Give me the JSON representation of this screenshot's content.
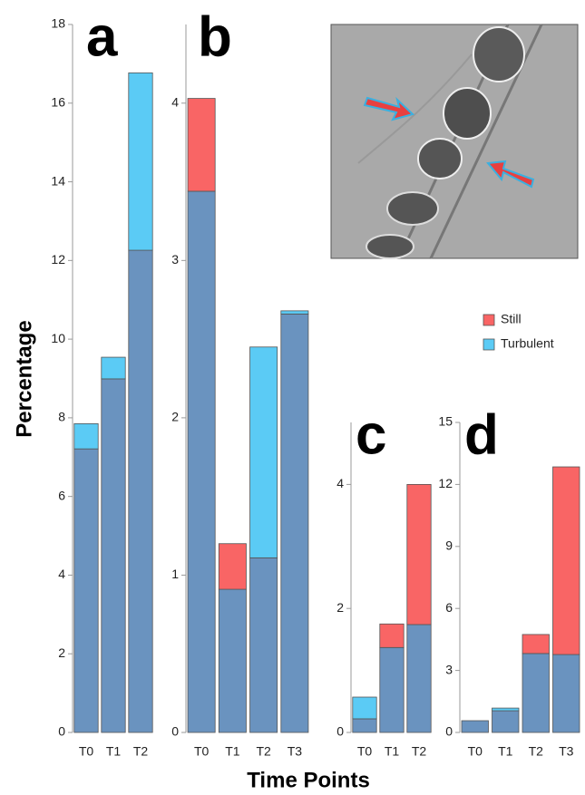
{
  "ylabel": "Percentage",
  "xlabel": "Time Points",
  "chart_data": [
    {
      "type": "stacked_bar",
      "title": "a",
      "categories": [
        "T0",
        "T1",
        "T2"
      ],
      "series": [
        {
          "color": "#6a93bf",
          "values": [
            7.21,
            8.99,
            12.26
          ]
        },
        {
          "color": "#5bcbf5",
          "values": [
            0.64,
            0.55,
            4.51
          ]
        }
      ],
      "ylim": [
        0,
        18
      ],
      "yticks": [
        0,
        2,
        4,
        6,
        8,
        10,
        12,
        14,
        16,
        18
      ]
    },
    {
      "type": "stacked_bar",
      "title": "b",
      "categories": [
        "T0",
        "T1",
        "T2",
        "T3"
      ],
      "series": [
        {
          "color": "#6a93bf",
          "values": [
            3.44,
            0.91,
            1.11,
            2.66
          ]
        },
        {
          "name": "Still",
          "color": "#f96565",
          "values": [
            0.59,
            0.29,
            0,
            0
          ]
        },
        {
          "name": "Turbulent",
          "color": "#5bcbf5",
          "values": [
            0,
            0,
            1.34,
            0.02
          ]
        }
      ],
      "ylim": [
        0,
        4.5
      ],
      "yticks": [
        0,
        1,
        2,
        3,
        4
      ],
      "legend": "right"
    },
    {
      "type": "stacked_bar",
      "title": "c",
      "categories": [
        "T0",
        "T1",
        "T2"
      ],
      "series": [
        {
          "color": "#6a93bf",
          "values": [
            0.22,
            1.37,
            1.74
          ]
        },
        {
          "color": "#f96565",
          "values": [
            0,
            0.38,
            2.26
          ]
        },
        {
          "color": "#5bcbf5",
          "values": [
            0.35,
            0,
            0
          ]
        }
      ],
      "ylim": [
        0,
        5
      ],
      "yticks": [
        0,
        2,
        4
      ]
    },
    {
      "type": "stacked_bar",
      "title": "d",
      "categories": [
        "T0",
        "T1",
        "T2",
        "T3"
      ],
      "series": [
        {
          "color": "#6a93bf",
          "values": [
            0.57,
            1.05,
            3.82,
            3.77
          ]
        },
        {
          "color": "#f96565",
          "values": [
            0,
            0,
            0.92,
            9.08
          ]
        },
        {
          "color": "#5bcbf5",
          "values": [
            0,
            0.13,
            0,
            0
          ]
        }
      ],
      "ylim": [
        0,
        15
      ],
      "yticks": [
        0,
        3,
        6,
        9,
        12,
        15
      ]
    }
  ]
}
